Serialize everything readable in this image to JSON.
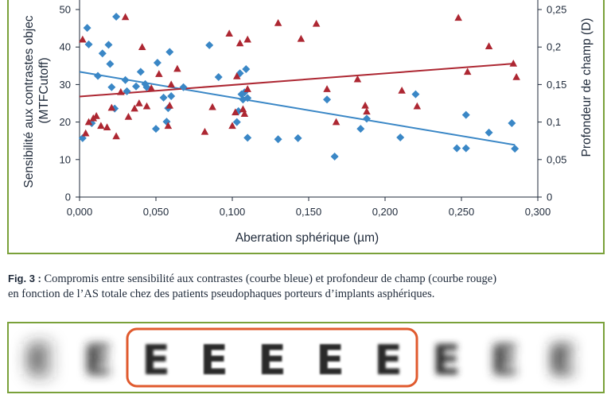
{
  "chart_data": {
    "type": "scatter",
    "title": "",
    "xlabel": "Aberration sphérique  (µm)",
    "ylabel_left_line1": "Sensibilité aux contrastes objec",
    "ylabel_left_line2": "(MTFCutoff)",
    "ylabel_right": "Profondeur de champ (D)",
    "xlim": [
      0,
      0.3
    ],
    "ylim_left": [
      0,
      50
    ],
    "ylim_right": [
      0,
      0.25
    ],
    "x_ticks": [
      "0,000",
      "0,050",
      "0,100",
      "0,150",
      "0,200",
      "0,250",
      "0,300"
    ],
    "y_ticks_left": [
      "0",
      "10",
      "20",
      "30",
      "40",
      "50"
    ],
    "y_ticks_right": [
      "0",
      "0,05",
      "0,1",
      "0,15",
      "0,2",
      "0,25"
    ],
    "grid": false,
    "series": [
      {
        "color": "#3a87c6",
        "marker": "diamond",
        "axis": "left",
        "trendline": {
          "x": [
            0.0,
            0.285
          ],
          "y": [
            33.4,
            13.9
          ]
        },
        "points": [
          [
            0.002,
            15.7
          ],
          [
            0.005,
            45.1
          ],
          [
            0.006,
            40.7
          ],
          [
            0.008,
            19.7
          ],
          [
            0.012,
            32.3
          ],
          [
            0.015,
            38.3
          ],
          [
            0.019,
            40.6
          ],
          [
            0.02,
            35.5
          ],
          [
            0.021,
            29.3
          ],
          [
            0.023,
            23.6
          ],
          [
            0.024,
            48.1
          ],
          [
            0.03,
            31.2
          ],
          [
            0.031,
            28.2
          ],
          [
            0.037,
            29.5
          ],
          [
            0.04,
            33.4
          ],
          [
            0.043,
            30.1
          ],
          [
            0.044,
            29.3
          ],
          [
            0.05,
            18.2
          ],
          [
            0.051,
            35.8
          ],
          [
            0.055,
            26.5
          ],
          [
            0.057,
            20.1
          ],
          [
            0.058,
            23.7
          ],
          [
            0.059,
            38.7
          ],
          [
            0.06,
            26.9
          ],
          [
            0.068,
            29.3
          ],
          [
            0.085,
            40.5
          ],
          [
            0.091,
            32.0
          ],
          [
            0.103,
            20.0
          ],
          [
            0.104,
            22.9
          ],
          [
            0.105,
            33.0
          ],
          [
            0.106,
            27.4
          ],
          [
            0.107,
            26.0
          ],
          [
            0.108,
            27.9
          ],
          [
            0.109,
            34.1
          ],
          [
            0.11,
            26.4
          ],
          [
            0.11,
            15.8
          ],
          [
            0.13,
            15.4
          ],
          [
            0.143,
            15.7
          ],
          [
            0.162,
            26.0
          ],
          [
            0.167,
            10.8
          ],
          [
            0.184,
            18.2
          ],
          [
            0.188,
            20.9
          ],
          [
            0.21,
            15.9
          ],
          [
            0.22,
            27.4
          ],
          [
            0.247,
            13.0
          ],
          [
            0.253,
            13.0
          ],
          [
            0.253,
            21.9
          ],
          [
            0.268,
            17.2
          ],
          [
            0.283,
            19.7
          ],
          [
            0.285,
            12.9
          ]
        ]
      },
      {
        "color": "#ad2732",
        "marker": "triangle",
        "axis": "right",
        "trendline": {
          "x": [
            0.0,
            0.285
          ],
          "y": [
            0.134,
            0.178
          ]
        },
        "points": [
          [
            0.002,
            0.21
          ],
          [
            0.004,
            0.085
          ],
          [
            0.006,
            0.1
          ],
          [
            0.009,
            0.105
          ],
          [
            0.011,
            0.108
          ],
          [
            0.014,
            0.095
          ],
          [
            0.018,
            0.093
          ],
          [
            0.021,
            0.119
          ],
          [
            0.024,
            0.081
          ],
          [
            0.027,
            0.14
          ],
          [
            0.03,
            0.24
          ],
          [
            0.032,
            0.107
          ],
          [
            0.036,
            0.118
          ],
          [
            0.039,
            0.125
          ],
          [
            0.041,
            0.2
          ],
          [
            0.044,
            0.121
          ],
          [
            0.047,
            0.145
          ],
          [
            0.052,
            0.164
          ],
          [
            0.058,
            0.095
          ],
          [
            0.059,
            0.122
          ],
          [
            0.06,
            0.15
          ],
          [
            0.064,
            0.171
          ],
          [
            0.082,
            0.087
          ],
          [
            0.087,
            0.12
          ],
          [
            0.098,
            0.218
          ],
          [
            0.1,
            0.095
          ],
          [
            0.102,
            0.113
          ],
          [
            0.103,
            0.161
          ],
          [
            0.105,
            0.205
          ],
          [
            0.107,
            0.117
          ],
          [
            0.108,
            0.111
          ],
          [
            0.11,
            0.144
          ],
          [
            0.11,
            0.21
          ],
          [
            0.13,
            0.232
          ],
          [
            0.145,
            0.211
          ],
          [
            0.155,
            0.231
          ],
          [
            0.162,
            0.144
          ],
          [
            0.168,
            0.1
          ],
          [
            0.182,
            0.157
          ],
          [
            0.187,
            0.122
          ],
          [
            0.188,
            0.114
          ],
          [
            0.211,
            0.142
          ],
          [
            0.221,
            0.121
          ],
          [
            0.248,
            0.239
          ],
          [
            0.254,
            0.167
          ],
          [
            0.268,
            0.201
          ],
          [
            0.284,
            0.178
          ],
          [
            0.286,
            0.16
          ]
        ]
      }
    ]
  },
  "caption": {
    "fig_label": "Fig. 3 :",
    "line1_rest": " Compromis entre sensibilité aux contrastes (courbe bleue) et profondeur de champ (courbe rouge)",
    "line2": "en fonction de l’AS totale chez des patients pseudophaques porteurs d’implants asphériques."
  },
  "blur_strip": {
    "letter": "E",
    "letter_count": 10,
    "highlight_start": 2,
    "highlight_end": 6,
    "blur_levels": [
      10,
      6,
      1.5,
      1,
      1,
      1,
      1.5,
      4,
      6,
      8
    ],
    "frame_color": "#7aa13a",
    "highlight_color": "#e05a2e"
  },
  "colors": {
    "panel_border": "#7aa13a",
    "axis": "#1f2a3a",
    "blue": "#3a87c6",
    "red": "#ad2732"
  }
}
